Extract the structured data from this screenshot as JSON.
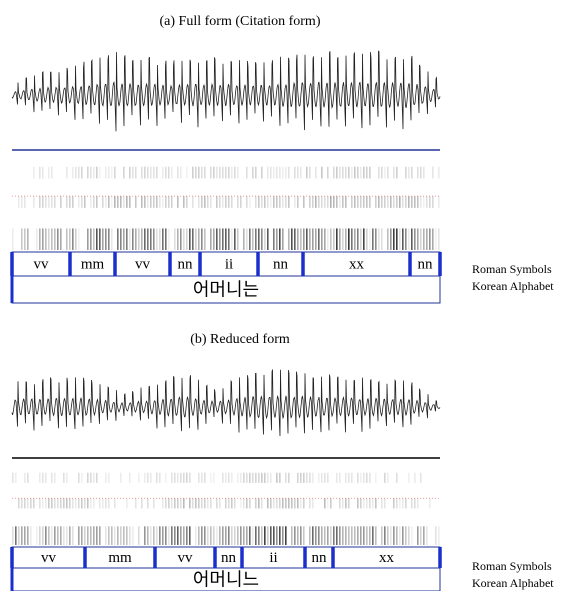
{
  "panels": [
    {
      "title": "(a) Full form (Citation form)",
      "segments": [
        "vv",
        "mm",
        "vv",
        "nn",
        "ii",
        "nn",
        "xx",
        "nn"
      ],
      "korean": "어머니는",
      "roman_label": "Roman Symbols",
      "korean_label": "Korean Alphabet"
    },
    {
      "title": "(b) Reduced form",
      "segments": [
        "vv",
        "mm",
        "vv",
        "nn",
        "ii",
        "nn",
        "xx"
      ],
      "korean": "어머니느",
      "roman_label": "Roman Symbols",
      "korean_label": "Korean Alphabet"
    }
  ]
}
